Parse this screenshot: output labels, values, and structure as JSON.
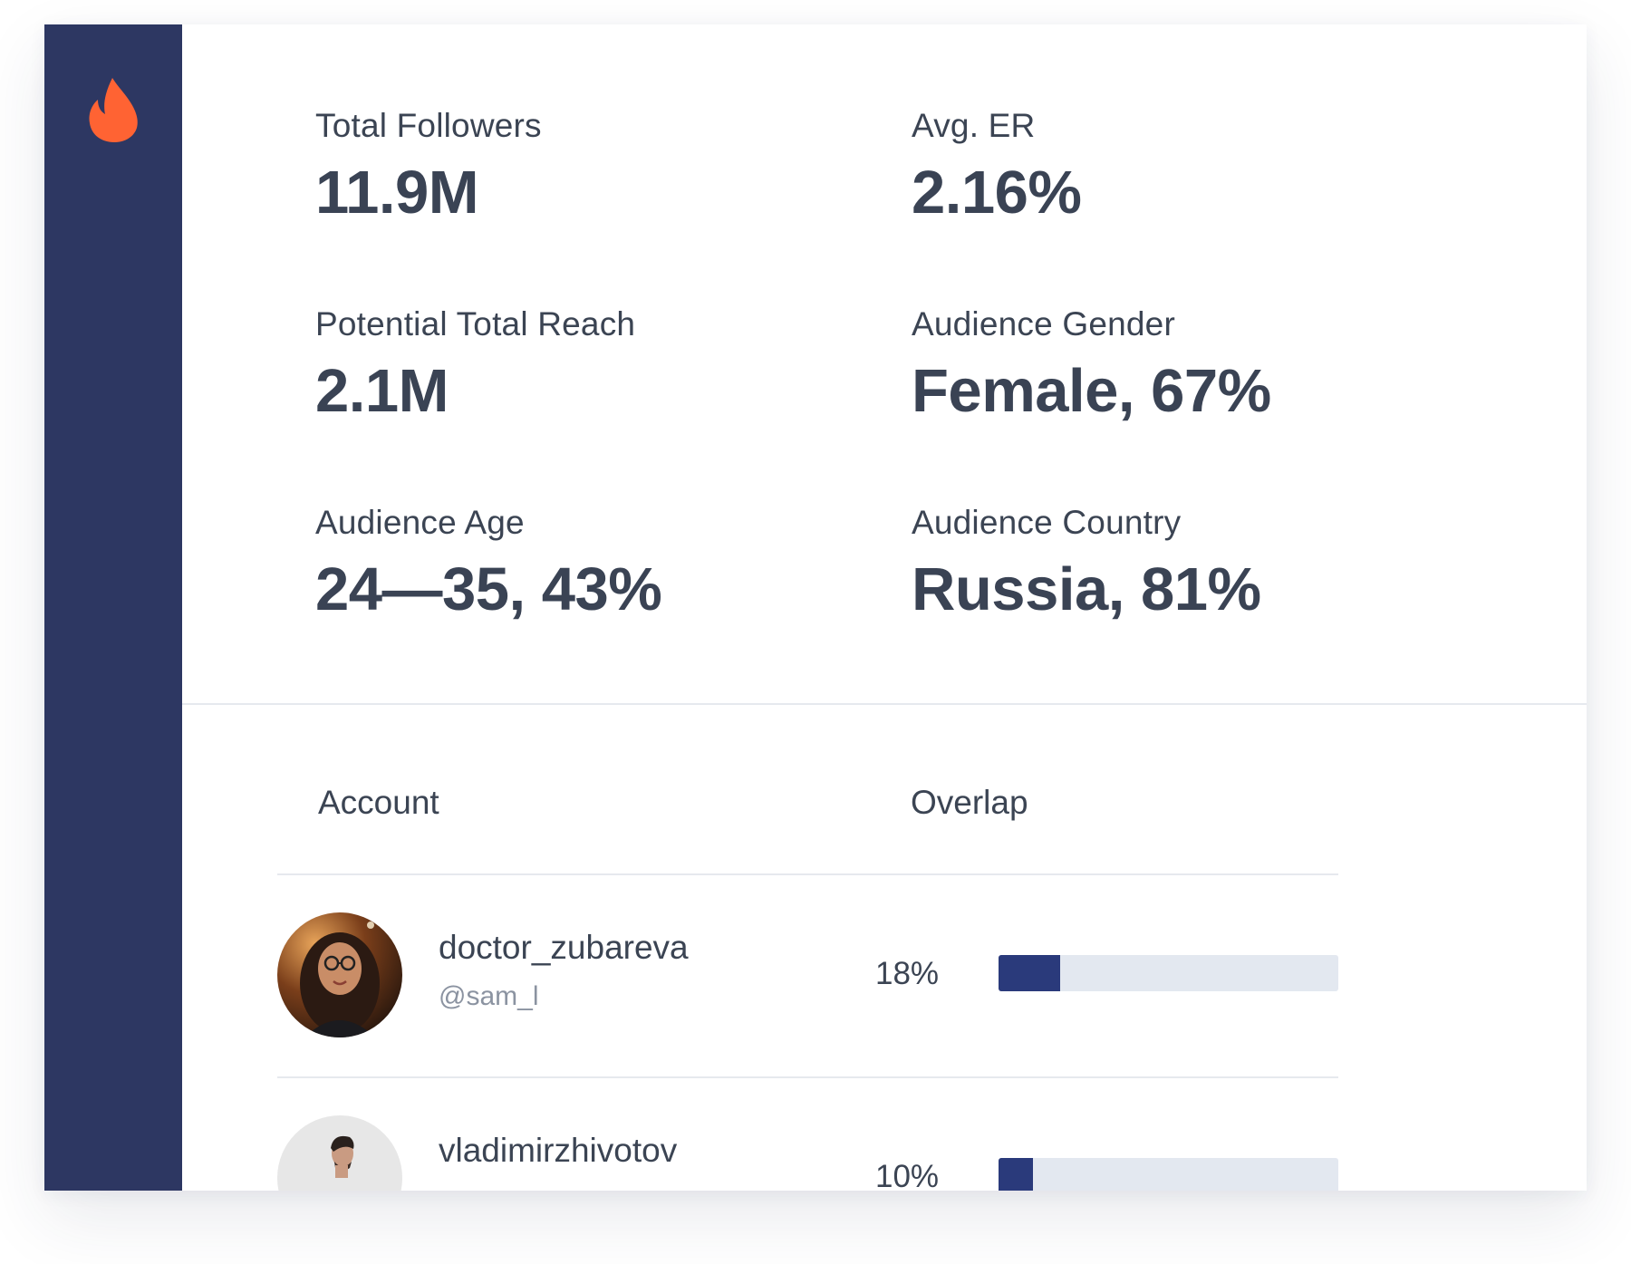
{
  "stats": [
    {
      "label": "Total Followers",
      "value": "11.9M"
    },
    {
      "label": "Avg. ER",
      "value": "2.16%"
    },
    {
      "label": "Potential Total Reach",
      "value": "2.1M"
    },
    {
      "label": "Audience Gender",
      "value": "Female, 67%"
    },
    {
      "label": "Audience Age",
      "value": "24—35, 43%"
    },
    {
      "label": "Audience Country",
      "value": "Russia, 81%"
    }
  ],
  "table": {
    "headers": {
      "account": "Account",
      "overlap": "Overlap"
    },
    "rows": [
      {
        "name": "doctor_zubareva",
        "handle": "@sam_l",
        "overlap_label": "18%",
        "overlap": 0.18
      },
      {
        "name": "vladimirzhivotov",
        "handle": "",
        "overlap_label": "10%",
        "overlap": 0.1
      }
    ]
  },
  "colors": {
    "sidebar": "#2d3762",
    "logo": "#ff6333",
    "bar_fill": "#2a3a7b",
    "bar_track": "#e3e8f0",
    "text": "#3b4453",
    "muted": "#8b93a1"
  },
  "icons": {
    "logo": "flame-icon"
  }
}
